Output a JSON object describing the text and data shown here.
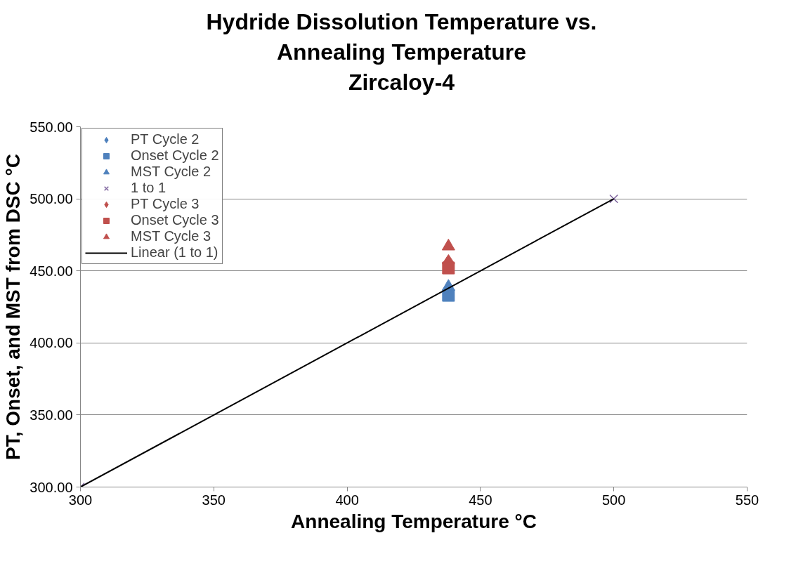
{
  "chart_data": {
    "type": "scatter",
    "title": "Hydride Dissolution Temperature vs.\nAnnealing Temperature\nZircaloy-4",
    "xlabel": "Annealing Temperature °C",
    "ylabel": "PT, Onset, and MST from DSC °C",
    "xlim": [
      300,
      550
    ],
    "xticks": [
      300,
      350,
      400,
      450,
      500,
      550
    ],
    "ylim": [
      300,
      550
    ],
    "yticks": [
      {
        "value": 300,
        "label": "300.00"
      },
      {
        "value": 350,
        "label": "350.00"
      },
      {
        "value": 400,
        "label": "400.00"
      },
      {
        "value": 450,
        "label": "450.00"
      },
      {
        "value": 500,
        "label": "500.00"
      },
      {
        "value": 550,
        "label": "550.00"
      }
    ],
    "grid": "y",
    "legend": "top left",
    "series": [
      {
        "name": "PT Cycle 2",
        "color": "#4f81bd",
        "marker": "diamond",
        "x": [
          null
        ],
        "values": [
          null
        ]
      },
      {
        "name": "Onset Cycle 2",
        "color": "#4f81bd",
        "marker": "square",
        "x": [
          438
        ],
        "values": [
          433
        ]
      },
      {
        "name": "MST Cycle 2",
        "color": "#4f81bd",
        "marker": "triangle",
        "x": [
          438
        ],
        "values": [
          439
        ]
      },
      {
        "name": "1 to 1",
        "color": "#7e649e",
        "marker": "cross",
        "x": [
          300,
          500
        ],
        "values": [
          300,
          500
        ]
      },
      {
        "name": "PT Cycle 3",
        "color": "#c0504d",
        "marker": "diamond",
        "x": [
          438
        ],
        "values": [
          455
        ]
      },
      {
        "name": "Onset Cycle 3",
        "color": "#c0504d",
        "marker": "square",
        "x": [
          438
        ],
        "values": [
          452
        ]
      },
      {
        "name": "MST Cycle 3",
        "color": "#c0504d",
        "marker": "triangle",
        "x": [
          438
        ],
        "values": [
          467
        ]
      },
      {
        "name": "Linear (1 to 1)",
        "type": "line",
        "color": "#000000",
        "marker": "none",
        "line_style": "solid",
        "x": [
          300,
          500
        ],
        "values": [
          300,
          500
        ]
      }
    ]
  }
}
